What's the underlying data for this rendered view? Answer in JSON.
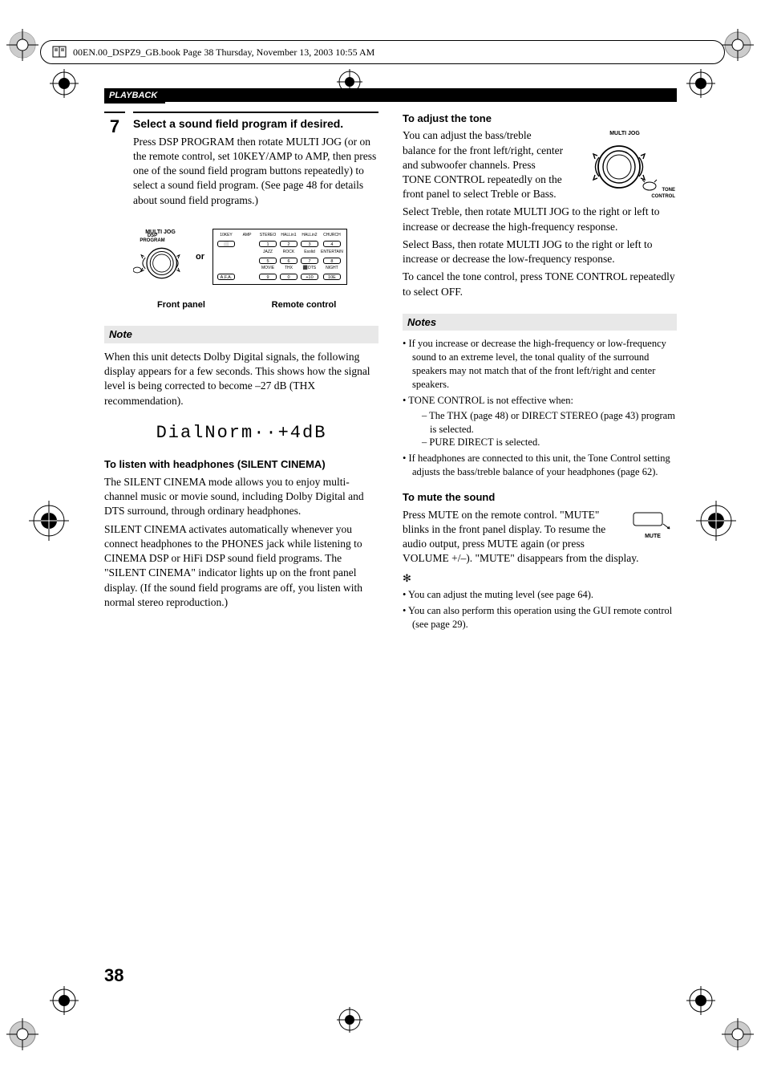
{
  "crop_mark": {
    "color": "#000000",
    "hatch_color": "#808080"
  },
  "header": {
    "filename": "00EN.00_DSPZ9_GB.book  Page 38  Thursday, November 13, 2003  10:55 AM",
    "fontsize": 12
  },
  "section": {
    "title": "PLAYBACK"
  },
  "left_col": {
    "step": {
      "num": "7",
      "head": "Select a sound field program if desired.",
      "body": "Press DSP PROGRAM then rotate MULTI JOG (or on the remote control, set 10KEY/AMP to AMP, then press one of the sound field program buttons repeatedly) to select a sound field program. (See page 48 for details about sound field programs.)"
    },
    "fig": {
      "multi_jog_label": "MULTI JOG",
      "dsp_program_label": "DSP\nPROGRAM",
      "or": "or",
      "remote_labels": [
        [
          "10KEY",
          "AMP",
          "STEREO",
          "HALLin1",
          "HALLin2",
          "CHURCH"
        ],
        [
          "",
          "",
          "JAZZ",
          "ROCK",
          "Esolid",
          "ENTERTAIN"
        ],
        [
          "",
          "",
          "MOVIE",
          "THX",
          "⬛DTS",
          "NIGHT"
        ]
      ],
      "remote_btns": [
        [
          "⬜",
          "",
          "1",
          "2",
          "3",
          "4"
        ],
        [
          "",
          "",
          "5",
          "6",
          "7",
          "8"
        ],
        [
          "A.F.A.",
          "",
          "9",
          "0",
          "+10",
          "10E"
        ]
      ],
      "caption_left": "Front panel",
      "caption_right": "Remote control"
    },
    "note_head": "Note",
    "note_body": "When this unit detects Dolby Digital signals, the following display appears for a few seconds. This shows how the signal level is being corrected to become –27 dB (THX recommendation).",
    "lcd": "DialNorm··+4dB",
    "silent_head": "To listen with headphones (SILENT CINEMA)",
    "silent_p1": "The SILENT CINEMA mode allows you to enjoy multi-channel music or movie sound, including Dolby Digital and DTS surround, through ordinary headphones.",
    "silent_p2": "SILENT CINEMA activates automatically whenever you connect headphones to the PHONES jack while listening to CINEMA DSP or HiFi DSP sound field programs. The \"SILENT CINEMA\" indicator lights up on the front panel display. (If the sound field programs are off, you listen with normal stereo reproduction.)"
  },
  "right_col": {
    "tone_head": "To adjust the tone",
    "tone_p1": "You can adjust the bass/treble balance for the front left/right, center and subwoofer channels. Press TONE CONTROL repeatedly on the front panel to select Treble or Bass.",
    "tone_fig": {
      "multi_jog": "MULTI JOG",
      "tone_control": "TONE\nCONTROL"
    },
    "tone_p2": "Select Treble, then rotate MULTI JOG to the right or left to increase or decrease the high-frequency response.",
    "tone_p3": "Select Bass, then rotate MULTI JOG to the right or left to increase or decrease the low-frequency response.",
    "tone_p4": "To cancel the tone control, press TONE CONTROL repeatedly to select OFF.",
    "notes_head": "Notes",
    "notes": [
      {
        "t": "If you increase or decrease the high-frequency or low-frequency sound to an extreme level, the tonal quality of the surround speakers may not match that of the front left/right and center speakers."
      },
      {
        "t": "TONE CONTROL is not effective when:",
        "sub": [
          "The THX (page 48) or DIRECT STEREO (page 43) program is selected.",
          "PURE DIRECT is selected."
        ]
      },
      {
        "t": "If headphones are connected to this unit, the Tone Control setting adjusts the bass/treble balance of your headphones (page 62)."
      }
    ],
    "mute_head": "To mute the sound",
    "mute_p1": "Press MUTE on the remote control. \"MUTE\" blinks in the front panel display. To resume the audio output, press MUTE again (or press VOLUME +/–). \"MUTE\" disappears from the display.",
    "mute_label": "MUTE",
    "tips": [
      "You can adjust the muting level (see page 64).",
      "You can also perform this operation using the GUI remote control (see page 29)."
    ]
  },
  "page_num": "38",
  "colors": {
    "text": "#000000",
    "bg": "#ffffff",
    "note_bg": "#e8e8e8"
  }
}
